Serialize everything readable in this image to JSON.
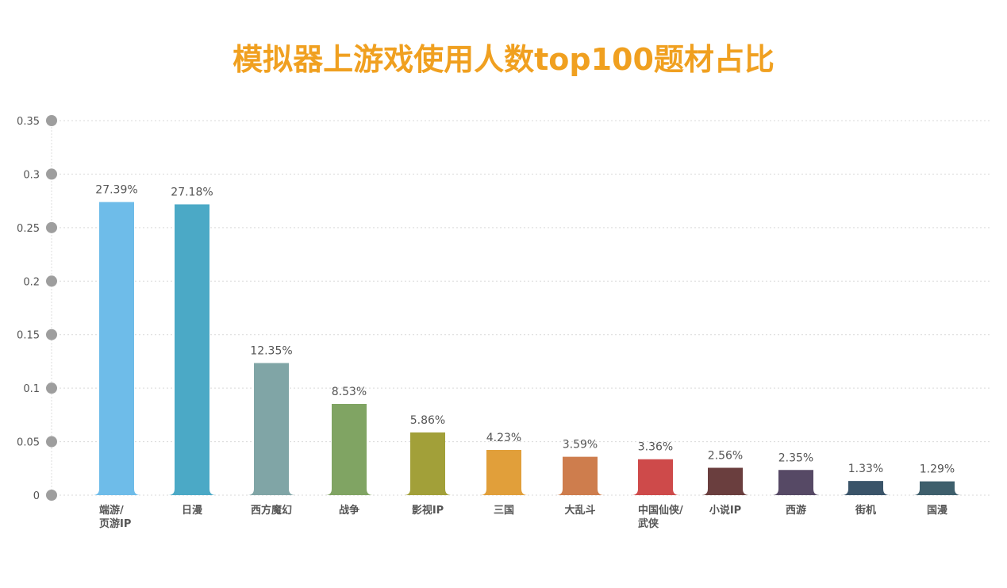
{
  "chart_data": {
    "type": "bar",
    "title": "模拟器上游戏使用人数top100题材占比",
    "xlabel": "",
    "ylabel": "",
    "ylim": [
      0,
      0.35
    ],
    "yticks": [
      "0",
      "0.05",
      "0.1",
      "0.15",
      "0.2",
      "0.25",
      "0.3",
      "0.35"
    ],
    "grid": true,
    "categories": [
      [
        "端游/",
        "页游IP"
      ],
      [
        "日漫"
      ],
      [
        "西方魔幻"
      ],
      [
        "战争"
      ],
      [
        "影视IP"
      ],
      [
        "三国"
      ],
      [
        "大乱斗"
      ],
      [
        "中国仙侠/",
        "武侠"
      ],
      [
        "小说IP"
      ],
      [
        "西游"
      ],
      [
        "街机"
      ],
      [
        "国漫"
      ]
    ],
    "values": [
      0.2739,
      0.2718,
      0.1235,
      0.0853,
      0.0586,
      0.0423,
      0.0359,
      0.0336,
      0.0256,
      0.0235,
      0.0133,
      0.0129
    ],
    "data_labels": [
      "27.39%",
      "27.18%",
      "12.35%",
      "8.53%",
      "5.86%",
      "4.23%",
      "3.59%",
      "3.36%",
      "2.56%",
      "2.35%",
      "1.33%",
      "1.29%"
    ],
    "colors": [
      "#6EBCE9",
      "#4BA9C6",
      "#80A5A6",
      "#80A463",
      "#A2A039",
      "#E19F3A",
      "#CE7D4D",
      "#CE4A4A",
      "#6A3E3E",
      "#564965",
      "#3A5469",
      "#3E5F6C"
    ]
  }
}
